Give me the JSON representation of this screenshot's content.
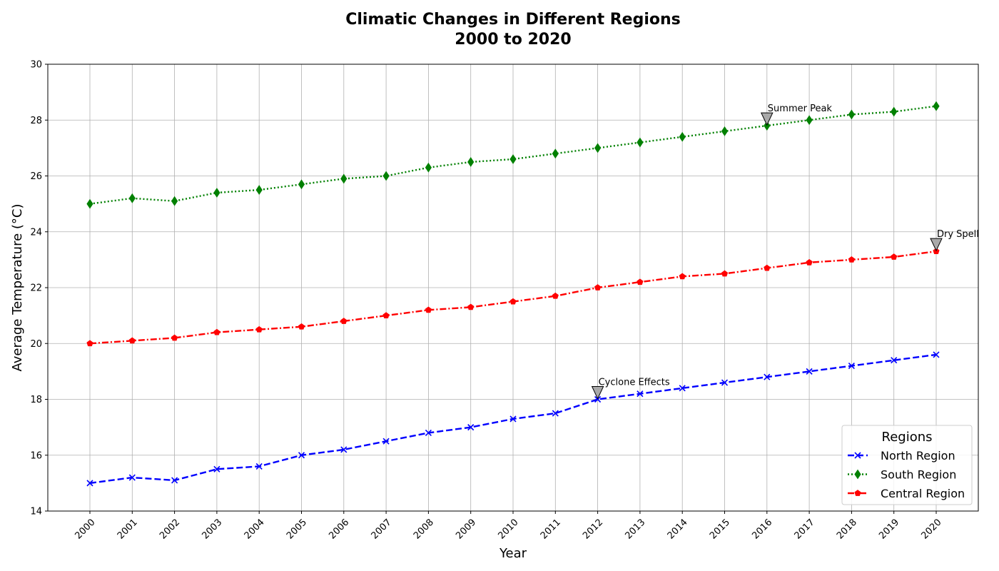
{
  "chart_data": {
    "type": "line",
    "title": "Climatic Changes in Different Regions",
    "subtitle": "2000 to 2020",
    "xlabel": "Year",
    "ylabel": "Average Temperature (°C)",
    "ylim": [
      14,
      30
    ],
    "y_ticks": [
      14,
      16,
      18,
      20,
      22,
      24,
      26,
      28,
      30
    ],
    "grid": true,
    "x": [
      "2000",
      "2001",
      "2002",
      "2003",
      "2004",
      "2005",
      "2006",
      "2007",
      "2008",
      "2009",
      "2010",
      "2011",
      "2012",
      "2013",
      "2014",
      "2015",
      "2016",
      "2017",
      "2018",
      "2019",
      "2020"
    ],
    "series": [
      {
        "name": "North Region",
        "color": "#0000ff",
        "marker": "x",
        "linestyle": "dashed",
        "values": [
          15.0,
          15.2,
          15.1,
          15.5,
          15.6,
          16.0,
          16.2,
          16.5,
          16.8,
          17.0,
          17.3,
          17.5,
          18.0,
          18.2,
          18.4,
          18.6,
          18.8,
          19.0,
          19.2,
          19.4,
          19.6
        ]
      },
      {
        "name": "South Region",
        "color": "#008000",
        "marker": "diamond",
        "linestyle": "dotted",
        "values": [
          25.0,
          25.2,
          25.1,
          25.4,
          25.5,
          25.7,
          25.9,
          26.0,
          26.3,
          26.5,
          26.6,
          26.8,
          27.0,
          27.2,
          27.4,
          27.6,
          27.8,
          28.0,
          28.2,
          28.3,
          28.5
        ]
      },
      {
        "name": "Central Region",
        "color": "#ff0000",
        "marker": "pentagon",
        "linestyle": "dashdot",
        "values": [
          20.0,
          20.1,
          20.2,
          20.4,
          20.5,
          20.6,
          20.8,
          21.0,
          21.2,
          21.3,
          21.5,
          21.7,
          22.0,
          22.2,
          22.4,
          22.5,
          22.7,
          22.9,
          23.0,
          23.1,
          23.3
        ]
      }
    ],
    "annotations": [
      {
        "text": "Summer Peak",
        "x": "2016",
        "y": 27.8
      },
      {
        "text": "Dry Spell",
        "x": "2020",
        "y": 23.3
      },
      {
        "text": "Cyclone Effects",
        "x": "2012",
        "y": 18.0
      }
    ],
    "legend": {
      "title": "Regions",
      "placement": "lower-right"
    }
  }
}
